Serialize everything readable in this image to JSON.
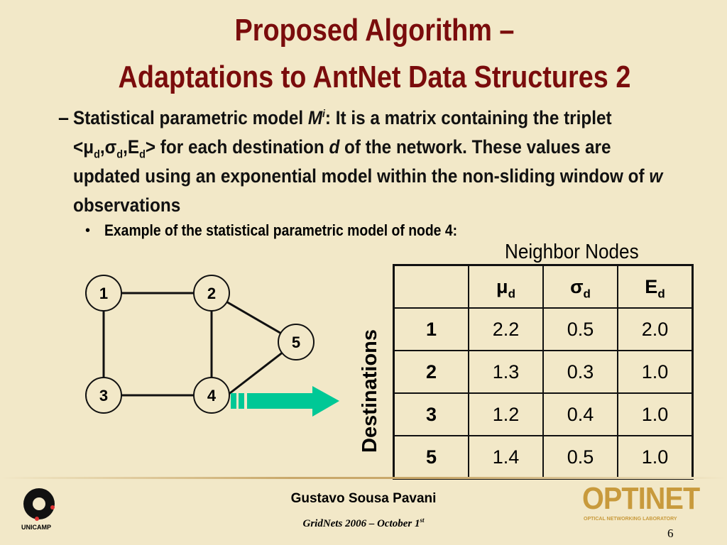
{
  "title": {
    "line1": "Proposed Algorithm –",
    "line2": "Adaptations to AntNet Data Structures 2"
  },
  "body": {
    "dash": "–",
    "p1": "Statistical parametric model ",
    "M": "M",
    "i": "i",
    "p2": ": It is a matrix containing the triplet <",
    "mu": "μ",
    "d": "d",
    "sigma": "σ",
    "E": "E",
    "p3": "> for each destination ",
    "dv": "d",
    "p4": " of the network. These values are updated using an exponential model within the non-sliding window of ",
    "w": "w",
    "p5": " observations"
  },
  "bullet": {
    "mark": "•",
    "text": "Example of the statistical parametric model of node 4:"
  },
  "graph": {
    "nodes": [
      "1",
      "2",
      "3",
      "4",
      "5"
    ],
    "arrow_color": "#00c896"
  },
  "table": {
    "col_header_title": "Neighbor Nodes",
    "row_header_title": "Destinations",
    "headers": [
      {
        "sym": "μ",
        "sub": "d"
      },
      {
        "sym": "σ",
        "sub": "d"
      },
      {
        "sym": "E",
        "sub": "d"
      }
    ],
    "rows": [
      {
        "dest": "1",
        "values": [
          "2.2",
          "0.5",
          "2.0"
        ]
      },
      {
        "dest": "2",
        "values": [
          "1.3",
          "0.3",
          "1.0"
        ]
      },
      {
        "dest": "3",
        "values": [
          "1.2",
          "0.4",
          "1.0"
        ]
      },
      {
        "dest": "5",
        "values": [
          "1.4",
          "0.5",
          "1.0"
        ]
      }
    ]
  },
  "footer": {
    "author": "Gustavo Sousa Pavani",
    "event": "GridNets 2006  – October 1",
    "event_sup": "st",
    "page": "6",
    "logo_left": "UNICAMP",
    "logo_right": "OPTINET",
    "logo_right_sub": "OPTICAL NETWORKING LABORATORY"
  }
}
